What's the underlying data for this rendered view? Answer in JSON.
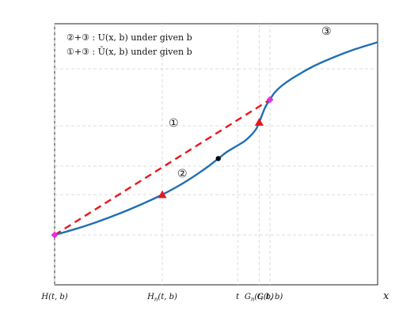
{
  "chart_data": {
    "type": "line",
    "x_axis_label": "x",
    "x_ticks": [
      "H(t, b)",
      "H_n(t, b)",
      "t",
      "G_n(t, b)",
      "G(t, b)"
    ],
    "legend": [
      "②+③ : U(x, b) under given b",
      "①+③ : Ũ(x, b) under given b"
    ],
    "region_labels": [
      "①",
      "②",
      "③"
    ],
    "series": [
      {
        "role": "curve",
        "color": "#1f6fb2",
        "style": "solid",
        "points": [
          [
            0,
            0.3
          ],
          [
            0.1,
            0.56
          ],
          [
            0.2,
            0.86
          ],
          [
            0.3,
            1.2
          ],
          [
            0.4,
            1.58
          ],
          [
            0.5,
            2.0
          ],
          [
            0.6,
            2.5
          ],
          [
            0.7,
            3.1
          ],
          [
            0.76,
            3.52
          ],
          [
            0.8,
            3.8
          ],
          [
            0.84,
            4.02
          ],
          [
            0.88,
            4.24
          ],
          [
            0.91,
            4.48
          ],
          [
            0.935,
            4.75
          ],
          [
            0.945,
            4.95
          ],
          [
            0.95,
            5.05
          ],
          [
            0.955,
            5.15
          ],
          [
            0.965,
            5.4
          ],
          [
            0.98,
            5.72
          ],
          [
            1.0,
            6.0
          ],
          [
            1.02,
            6.28
          ],
          [
            1.05,
            6.55
          ],
          [
            1.1,
            6.88
          ],
          [
            1.2,
            7.4
          ],
          [
            1.3,
            7.8
          ],
          [
            1.4,
            8.14
          ],
          [
            1.5,
            8.42
          ]
        ]
      },
      {
        "role": "chord",
        "color": "#e8171c",
        "style": "dashed",
        "points": [
          [
            0,
            0.3
          ],
          [
            1.0,
            6.0
          ]
        ]
      }
    ],
    "markers": {
      "triangles": {
        "color": "#e8171c",
        "points": [
          [
            0.5,
            2.0
          ],
          [
            0.95,
            5.05
          ]
        ]
      },
      "diamonds": {
        "color": "#e22fe2",
        "points": [
          [
            0,
            0.3
          ],
          [
            1.0,
            6.0
          ]
        ]
      },
      "dot": {
        "color": "#000000",
        "points": [
          [
            0.76,
            3.52
          ]
        ]
      }
    },
    "x_tick_positions": [
      0,
      0.5,
      0.85,
      0.95,
      1.0
    ],
    "y_grid": [
      0.3,
      2.0,
      3.2,
      4.9,
      7.3
    ],
    "xlim": [
      0,
      1.5
    ],
    "ylim": [
      -1.8,
      9.2
    ],
    "grid": true
  }
}
